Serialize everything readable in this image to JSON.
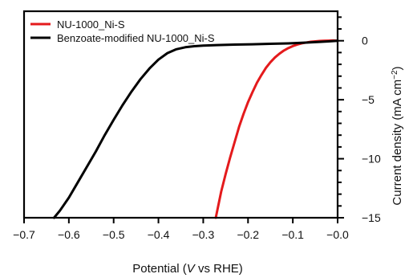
{
  "chart_data": {
    "type": "line",
    "xlabel_parts": [
      "Potential (",
      "V",
      " vs RHE)"
    ],
    "ylabel_parts": [
      "Current density (mA cm",
      "−2",
      ")"
    ],
    "x_ticks": [
      -0.7,
      -0.6,
      -0.5,
      -0.4,
      -0.3,
      -0.2,
      -0.1,
      0.0
    ],
    "x_tick_labels": [
      "−0.7",
      "−0.6",
      "−0.5",
      "−0.4",
      "−0.3",
      "−0.2",
      "−0.1",
      "−0.0"
    ],
    "y_ticks": [
      0,
      -5,
      -10,
      -15
    ],
    "y_tick_labels": [
      "0",
      "−5",
      "−10",
      "−15"
    ],
    "xlim": [
      -0.7,
      0.0
    ],
    "ylim": [
      -15,
      2.5
    ],
    "legend_position": "top-left",
    "series": [
      {
        "name": "NU-1000_Ni-S",
        "color": "#e41a1c",
        "points": [
          [
            -0.272,
            -15.0
          ],
          [
            -0.266,
            -13.9
          ],
          [
            -0.26,
            -12.8
          ],
          [
            -0.25,
            -11.3
          ],
          [
            -0.24,
            -9.9
          ],
          [
            -0.23,
            -8.6
          ],
          [
            -0.22,
            -7.3
          ],
          [
            -0.21,
            -6.2
          ],
          [
            -0.2,
            -5.2
          ],
          [
            -0.19,
            -4.35
          ],
          [
            -0.18,
            -3.55
          ],
          [
            -0.17,
            -2.9
          ],
          [
            -0.16,
            -2.3
          ],
          [
            -0.15,
            -1.82
          ],
          [
            -0.14,
            -1.42
          ],
          [
            -0.13,
            -1.1
          ],
          [
            -0.12,
            -0.83
          ],
          [
            -0.11,
            -0.62
          ],
          [
            -0.1,
            -0.45
          ],
          [
            -0.09,
            -0.32
          ],
          [
            -0.08,
            -0.22
          ],
          [
            -0.07,
            -0.15
          ],
          [
            -0.06,
            -0.09
          ],
          [
            -0.05,
            -0.05
          ],
          [
            -0.04,
            -0.02
          ],
          [
            -0.03,
            0.0
          ],
          [
            -0.02,
            0.01
          ],
          [
            -0.01,
            0.02
          ],
          [
            0.0,
            0.0
          ]
        ]
      },
      {
        "name": "Benzoate-modified NU-1000_Ni-S",
        "color": "#000000",
        "points": [
          [
            -0.633,
            -15.0
          ],
          [
            -0.62,
            -14.4
          ],
          [
            -0.6,
            -13.3
          ],
          [
            -0.58,
            -12.0
          ],
          [
            -0.56,
            -10.7
          ],
          [
            -0.54,
            -9.4
          ],
          [
            -0.52,
            -8.0
          ],
          [
            -0.5,
            -6.7
          ],
          [
            -0.48,
            -5.45
          ],
          [
            -0.46,
            -4.3
          ],
          [
            -0.44,
            -3.25
          ],
          [
            -0.42,
            -2.35
          ],
          [
            -0.4,
            -1.6
          ],
          [
            -0.38,
            -1.05
          ],
          [
            -0.36,
            -0.72
          ],
          [
            -0.34,
            -0.55
          ],
          [
            -0.32,
            -0.46
          ],
          [
            -0.3,
            -0.41
          ],
          [
            -0.27,
            -0.37
          ],
          [
            -0.23,
            -0.33
          ],
          [
            -0.19,
            -0.3
          ],
          [
            -0.15,
            -0.26
          ],
          [
            -0.11,
            -0.22
          ],
          [
            -0.07,
            -0.16
          ],
          [
            -0.04,
            -0.1
          ],
          [
            -0.02,
            -0.05
          ],
          [
            0.0,
            0.0
          ]
        ]
      }
    ]
  }
}
